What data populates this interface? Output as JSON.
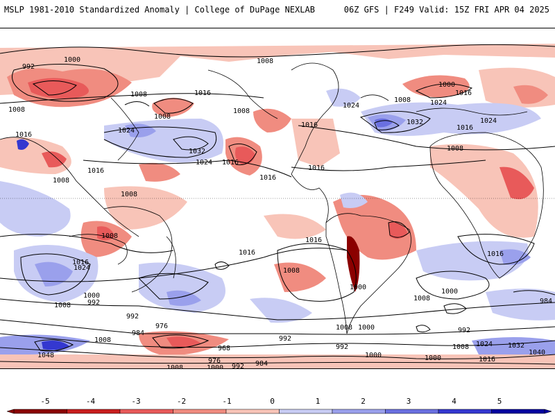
{
  "header": {
    "title_left": "MSLP 1981-2010 Standardized Anomaly | College of DuPage NEXLAB",
    "title_right": "06Z GFS | F249 Valid: 15Z FRI APR 04 2025"
  },
  "colors": {
    "neg5": "#8b0000",
    "neg4": "#c81e1e",
    "neg3": "#e85a5a",
    "neg2": "#f08c80",
    "neg1": "#f8c4b8",
    "zero": "#ffffff",
    "pos1": "#c8ccf4",
    "pos2": "#9aa0ec",
    "pos3": "#6a70e0",
    "pos4": "#3438d0",
    "pos5": "#0000a0"
  },
  "colorbar": {
    "ticks": [
      "-5",
      "-4",
      "-3",
      "-2",
      "-1",
      "0",
      "1",
      "2",
      "3",
      "4",
      "5"
    ]
  },
  "isobar_labels": [
    "1000",
    "992",
    "1008",
    "1008",
    "1016",
    "1008",
    "1016",
    "1024",
    "1032",
    "1024",
    "1016",
    "1008",
    "1008",
    "1016",
    "1008",
    "1008",
    "1016",
    "1024",
    "1032",
    "1024",
    "1016",
    "1008",
    "1016",
    "1016",
    "1008",
    "1016",
    "1024",
    "1000",
    "992",
    "1008",
    "1024",
    "1016",
    "1008",
    "1000",
    "984",
    "992",
    "976",
    "1048",
    "1008",
    "968",
    "976",
    "1008",
    "1000",
    "992",
    "984",
    "992",
    "1016",
    "1008",
    "1016",
    "1000",
    "1008",
    "1000",
    "1008",
    "1000",
    "992",
    "1000",
    "992",
    "984",
    "1008",
    "1016",
    "1024",
    "1032",
    "1040",
    "1000",
    "1016"
  ]
}
